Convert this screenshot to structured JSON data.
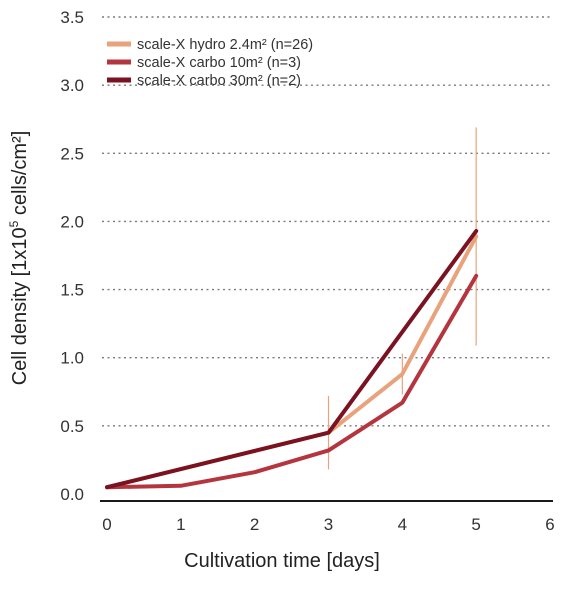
{
  "chart_data": {
    "type": "line",
    "title": "",
    "xlabel": "Cultivation time [days]",
    "ylabel_parts": {
      "before": "Cell density [1x10",
      "sup": "5",
      "after": " cells/cm²]"
    },
    "xlim": [
      0,
      6
    ],
    "ylim": [
      0,
      3.5
    ],
    "x_ticks": [
      "0",
      "1",
      "2",
      "3",
      "4",
      "5",
      "6"
    ],
    "y_ticks": [
      "0.0",
      "0.5",
      "1.0",
      "1.5",
      "2.0",
      "2.5",
      "3.0",
      "3.5"
    ],
    "grid": "horizontal dotted",
    "legend_position": "top-left",
    "series": [
      {
        "name": "scale-X hydro 2.4m² (n=26)",
        "color": "#e8a27c",
        "x": [
          0,
          3,
          4,
          5
        ],
        "y": [
          0.05,
          0.45,
          0.88,
          1.89
        ],
        "error_y": [
          0,
          0.27,
          0.15,
          0.8
        ]
      },
      {
        "name": "scale-X carbo 10m² (n=3)",
        "color": "#b5353f",
        "x": [
          0,
          1,
          2,
          3,
          4,
          5
        ],
        "y": [
          0.05,
          0.06,
          0.16,
          0.32,
          0.67,
          1.6
        ],
        "error_y": [
          0,
          0,
          0,
          0,
          0,
          0
        ]
      },
      {
        "name": "scale-X carbo 30m² (n=2)",
        "color": "#7a1221",
        "x": [
          0,
          3,
          5
        ],
        "y": [
          0.05,
          0.45,
          1.93
        ],
        "error_y": [
          0,
          0,
          0
        ]
      }
    ]
  }
}
